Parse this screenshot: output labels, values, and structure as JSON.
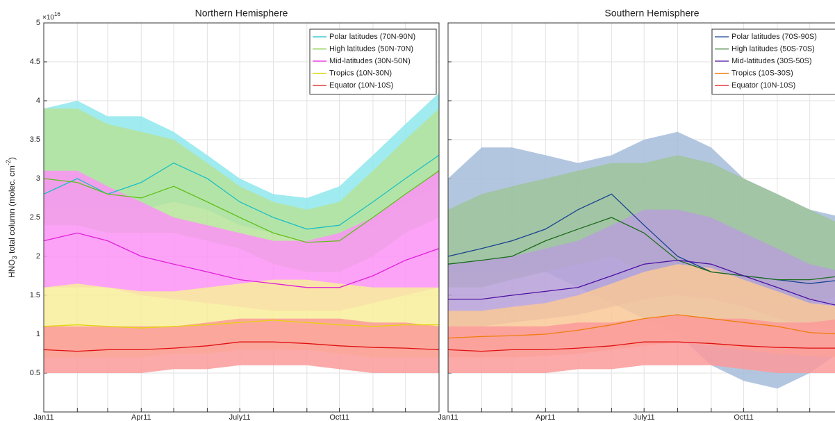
{
  "chart_data": [
    {
      "type": "band-line",
      "title": "Northern Hemisphere",
      "ylabel_parts": [
        "HNO",
        "3",
        " total column (molec. cm",
        "-2",
        ")"
      ],
      "exponent_parts": [
        "×10",
        "16"
      ],
      "x": [
        0,
        31,
        59,
        90,
        120,
        151,
        181,
        212,
        243,
        273,
        304,
        334,
        365
      ],
      "xlim": [
        0,
        365
      ],
      "xticks": [
        {
          "value": 0,
          "label": "Jan11"
        },
        {
          "value": 90,
          "label": "Apr11"
        },
        {
          "value": 181,
          "label": "July11"
        },
        {
          "value": 273,
          "label": "Oct11"
        }
      ],
      "xminor_ticks": [
        31,
        59,
        120,
        151,
        212,
        243,
        304,
        334
      ],
      "ylim": [
        0,
        5
      ],
      "yticks": [
        0.5,
        1,
        1.5,
        2,
        2.5,
        3,
        3.5,
        4,
        4.5,
        5
      ],
      "grid": true,
      "legend": "upper right",
      "series": [
        {
          "name": "Polar latitudes (70N-90N)",
          "color": "#1cbfc4",
          "band_color": "#8ee8ec",
          "values": [
            2.8,
            3.0,
            2.8,
            2.95,
            3.2,
            3.0,
            2.7,
            2.5,
            2.35,
            2.4,
            2.7,
            3.0,
            3.3
          ],
          "low": [
            2.6,
            2.6,
            2.6,
            2.6,
            2.7,
            2.6,
            2.4,
            2.3,
            2.2,
            2.2,
            2.4,
            2.7,
            2.9
          ],
          "high": [
            3.9,
            4.0,
            3.8,
            3.8,
            3.6,
            3.3,
            3.0,
            2.8,
            2.75,
            2.9,
            3.3,
            3.7,
            4.1
          ]
        },
        {
          "name": "High latitudes (50N-70N)",
          "color": "#5fbf1a",
          "band_color": "#b6e39a",
          "values": [
            3.0,
            2.95,
            2.8,
            2.75,
            2.9,
            2.7,
            2.5,
            2.3,
            2.18,
            2.2,
            2.5,
            2.8,
            3.1
          ],
          "low": [
            2.4,
            2.4,
            2.3,
            2.3,
            2.3,
            2.2,
            2.1,
            1.9,
            1.8,
            1.8,
            2.0,
            2.3,
            2.5
          ],
          "high": [
            3.9,
            3.9,
            3.7,
            3.6,
            3.5,
            3.2,
            2.9,
            2.7,
            2.6,
            2.7,
            3.1,
            3.5,
            3.9
          ]
        },
        {
          "name": "Mid-latitudes (30N-50N)",
          "color": "#e01fd8",
          "band_color": "#fb93f6",
          "values": [
            2.2,
            2.3,
            2.2,
            2.0,
            1.9,
            1.8,
            1.7,
            1.65,
            1.6,
            1.6,
            1.75,
            1.95,
            2.1
          ],
          "low": [
            1.6,
            1.6,
            1.6,
            1.5,
            1.45,
            1.4,
            1.35,
            1.3,
            1.3,
            1.3,
            1.4,
            1.5,
            1.6
          ],
          "high": [
            3.1,
            3.1,
            2.9,
            2.7,
            2.5,
            2.4,
            2.3,
            2.2,
            2.2,
            2.3,
            2.5,
            2.8,
            3.1
          ]
        },
        {
          "name": "Tropics (10N-30N)",
          "color": "#e6d20f",
          "band_color": "#f8ef9a",
          "values": [
            1.1,
            1.12,
            1.1,
            1.08,
            1.1,
            1.12,
            1.15,
            1.18,
            1.15,
            1.12,
            1.1,
            1.12,
            1.12
          ],
          "low": [
            0.7,
            0.7,
            0.7,
            0.7,
            0.75,
            0.75,
            0.8,
            0.8,
            0.8,
            0.75,
            0.7,
            0.7,
            0.7
          ],
          "high": [
            1.6,
            1.65,
            1.6,
            1.55,
            1.55,
            1.6,
            1.65,
            1.7,
            1.7,
            1.65,
            1.6,
            1.6,
            1.6
          ]
        },
        {
          "name": "Equator (10N-10S)",
          "color": "#e01010",
          "band_color": "#fb9a9a",
          "values": [
            0.8,
            0.78,
            0.8,
            0.8,
            0.82,
            0.85,
            0.9,
            0.9,
            0.88,
            0.85,
            0.83,
            0.82,
            0.8
          ],
          "low": [
            0.5,
            0.5,
            0.5,
            0.5,
            0.55,
            0.55,
            0.6,
            0.6,
            0.6,
            0.55,
            0.5,
            0.5,
            0.5
          ],
          "high": [
            1.1,
            1.1,
            1.1,
            1.1,
            1.1,
            1.15,
            1.2,
            1.2,
            1.2,
            1.2,
            1.15,
            1.15,
            1.1
          ]
        }
      ]
    },
    {
      "type": "band-line",
      "title": "Southern Hemisphere",
      "x": [
        0,
        31,
        59,
        90,
        120,
        151,
        181,
        212,
        243,
        273,
        304,
        334,
        365
      ],
      "xlim": [
        0,
        365
      ],
      "xticks": [
        {
          "value": 0,
          "label": "Jan11"
        },
        {
          "value": 90,
          "label": "Apr11"
        },
        {
          "value": 181,
          "label": "July11"
        },
        {
          "value": 273,
          "label": "Oct11"
        }
      ],
      "xminor_ticks": [
        31,
        59,
        120,
        151,
        212,
        243,
        304,
        334
      ],
      "ylim": [
        0,
        5
      ],
      "yticks": [
        0.5,
        1,
        1.5,
        2,
        2.5,
        3,
        3.5,
        4,
        4.5,
        5
      ],
      "grid": true,
      "legend": "upper right",
      "series": [
        {
          "name": "Polar latitudes (70S-90S)",
          "color": "#17428f",
          "band_color": "#a6bcdb",
          "values": [
            2.0,
            2.1,
            2.2,
            2.35,
            2.6,
            2.8,
            2.4,
            2.0,
            1.8,
            1.75,
            1.7,
            1.65,
            1.7
          ],
          "low": [
            1.8,
            1.8,
            1.8,
            1.8,
            1.6,
            1.4,
            1.2,
            1.0,
            0.6,
            0.4,
            0.3,
            0.5,
            0.8
          ],
          "high": [
            3.0,
            3.4,
            3.4,
            3.3,
            3.2,
            3.3,
            3.5,
            3.6,
            3.4,
            3.0,
            2.8,
            2.6,
            2.5
          ]
        },
        {
          "name": "High latitudes (50S-70S)",
          "color": "#1b6b1b",
          "band_color": "#9fc49a",
          "values": [
            1.9,
            1.95,
            2.0,
            2.2,
            2.35,
            2.5,
            2.3,
            1.95,
            1.8,
            1.75,
            1.7,
            1.7,
            1.75
          ],
          "low": [
            1.6,
            1.6,
            1.7,
            1.8,
            1.9,
            2.0,
            1.8,
            1.6,
            1.5,
            1.5,
            1.4,
            1.4,
            1.5
          ],
          "high": [
            2.6,
            2.8,
            2.9,
            3.0,
            3.1,
            3.2,
            3.2,
            3.3,
            3.2,
            3.0,
            2.8,
            2.6,
            2.4
          ]
        },
        {
          "name": "Mid-latitudes (30S-50S)",
          "color": "#4b0fa0",
          "band_color": "#b7a0d8",
          "values": [
            1.45,
            1.45,
            1.5,
            1.55,
            1.6,
            1.75,
            1.9,
            1.95,
            1.9,
            1.75,
            1.6,
            1.45,
            1.35
          ],
          "low": [
            1.1,
            1.1,
            1.15,
            1.2,
            1.25,
            1.35,
            1.45,
            1.5,
            1.45,
            1.35,
            1.2,
            1.1,
            1.05
          ],
          "high": [
            1.9,
            1.95,
            2.0,
            2.1,
            2.2,
            2.4,
            2.6,
            2.6,
            2.5,
            2.3,
            2.1,
            1.9,
            1.8
          ]
        },
        {
          "name": "Tropics (10S-30S)",
          "color": "#ef7d0a",
          "band_color": "#f9c898",
          "values": [
            0.95,
            0.97,
            0.98,
            1.0,
            1.05,
            1.12,
            1.2,
            1.25,
            1.2,
            1.15,
            1.1,
            1.02,
            1.0
          ],
          "low": [
            0.7,
            0.7,
            0.7,
            0.72,
            0.75,
            0.8,
            0.85,
            0.9,
            0.85,
            0.8,
            0.75,
            0.72,
            0.7
          ],
          "high": [
            1.3,
            1.3,
            1.35,
            1.4,
            1.5,
            1.65,
            1.8,
            1.9,
            1.85,
            1.7,
            1.55,
            1.4,
            1.35
          ]
        },
        {
          "name": "Equator (10N-10S)",
          "color": "#e01010",
          "band_color": "#fb9a9a",
          "values": [
            0.8,
            0.78,
            0.8,
            0.8,
            0.82,
            0.85,
            0.9,
            0.9,
            0.88,
            0.85,
            0.83,
            0.82,
            0.82
          ],
          "low": [
            0.5,
            0.5,
            0.5,
            0.5,
            0.55,
            0.55,
            0.6,
            0.6,
            0.6,
            0.55,
            0.5,
            0.5,
            0.5
          ],
          "high": [
            1.1,
            1.1,
            1.1,
            1.1,
            1.15,
            1.15,
            1.2,
            1.25,
            1.2,
            1.2,
            1.15,
            1.15,
            1.2
          ]
        }
      ]
    }
  ]
}
